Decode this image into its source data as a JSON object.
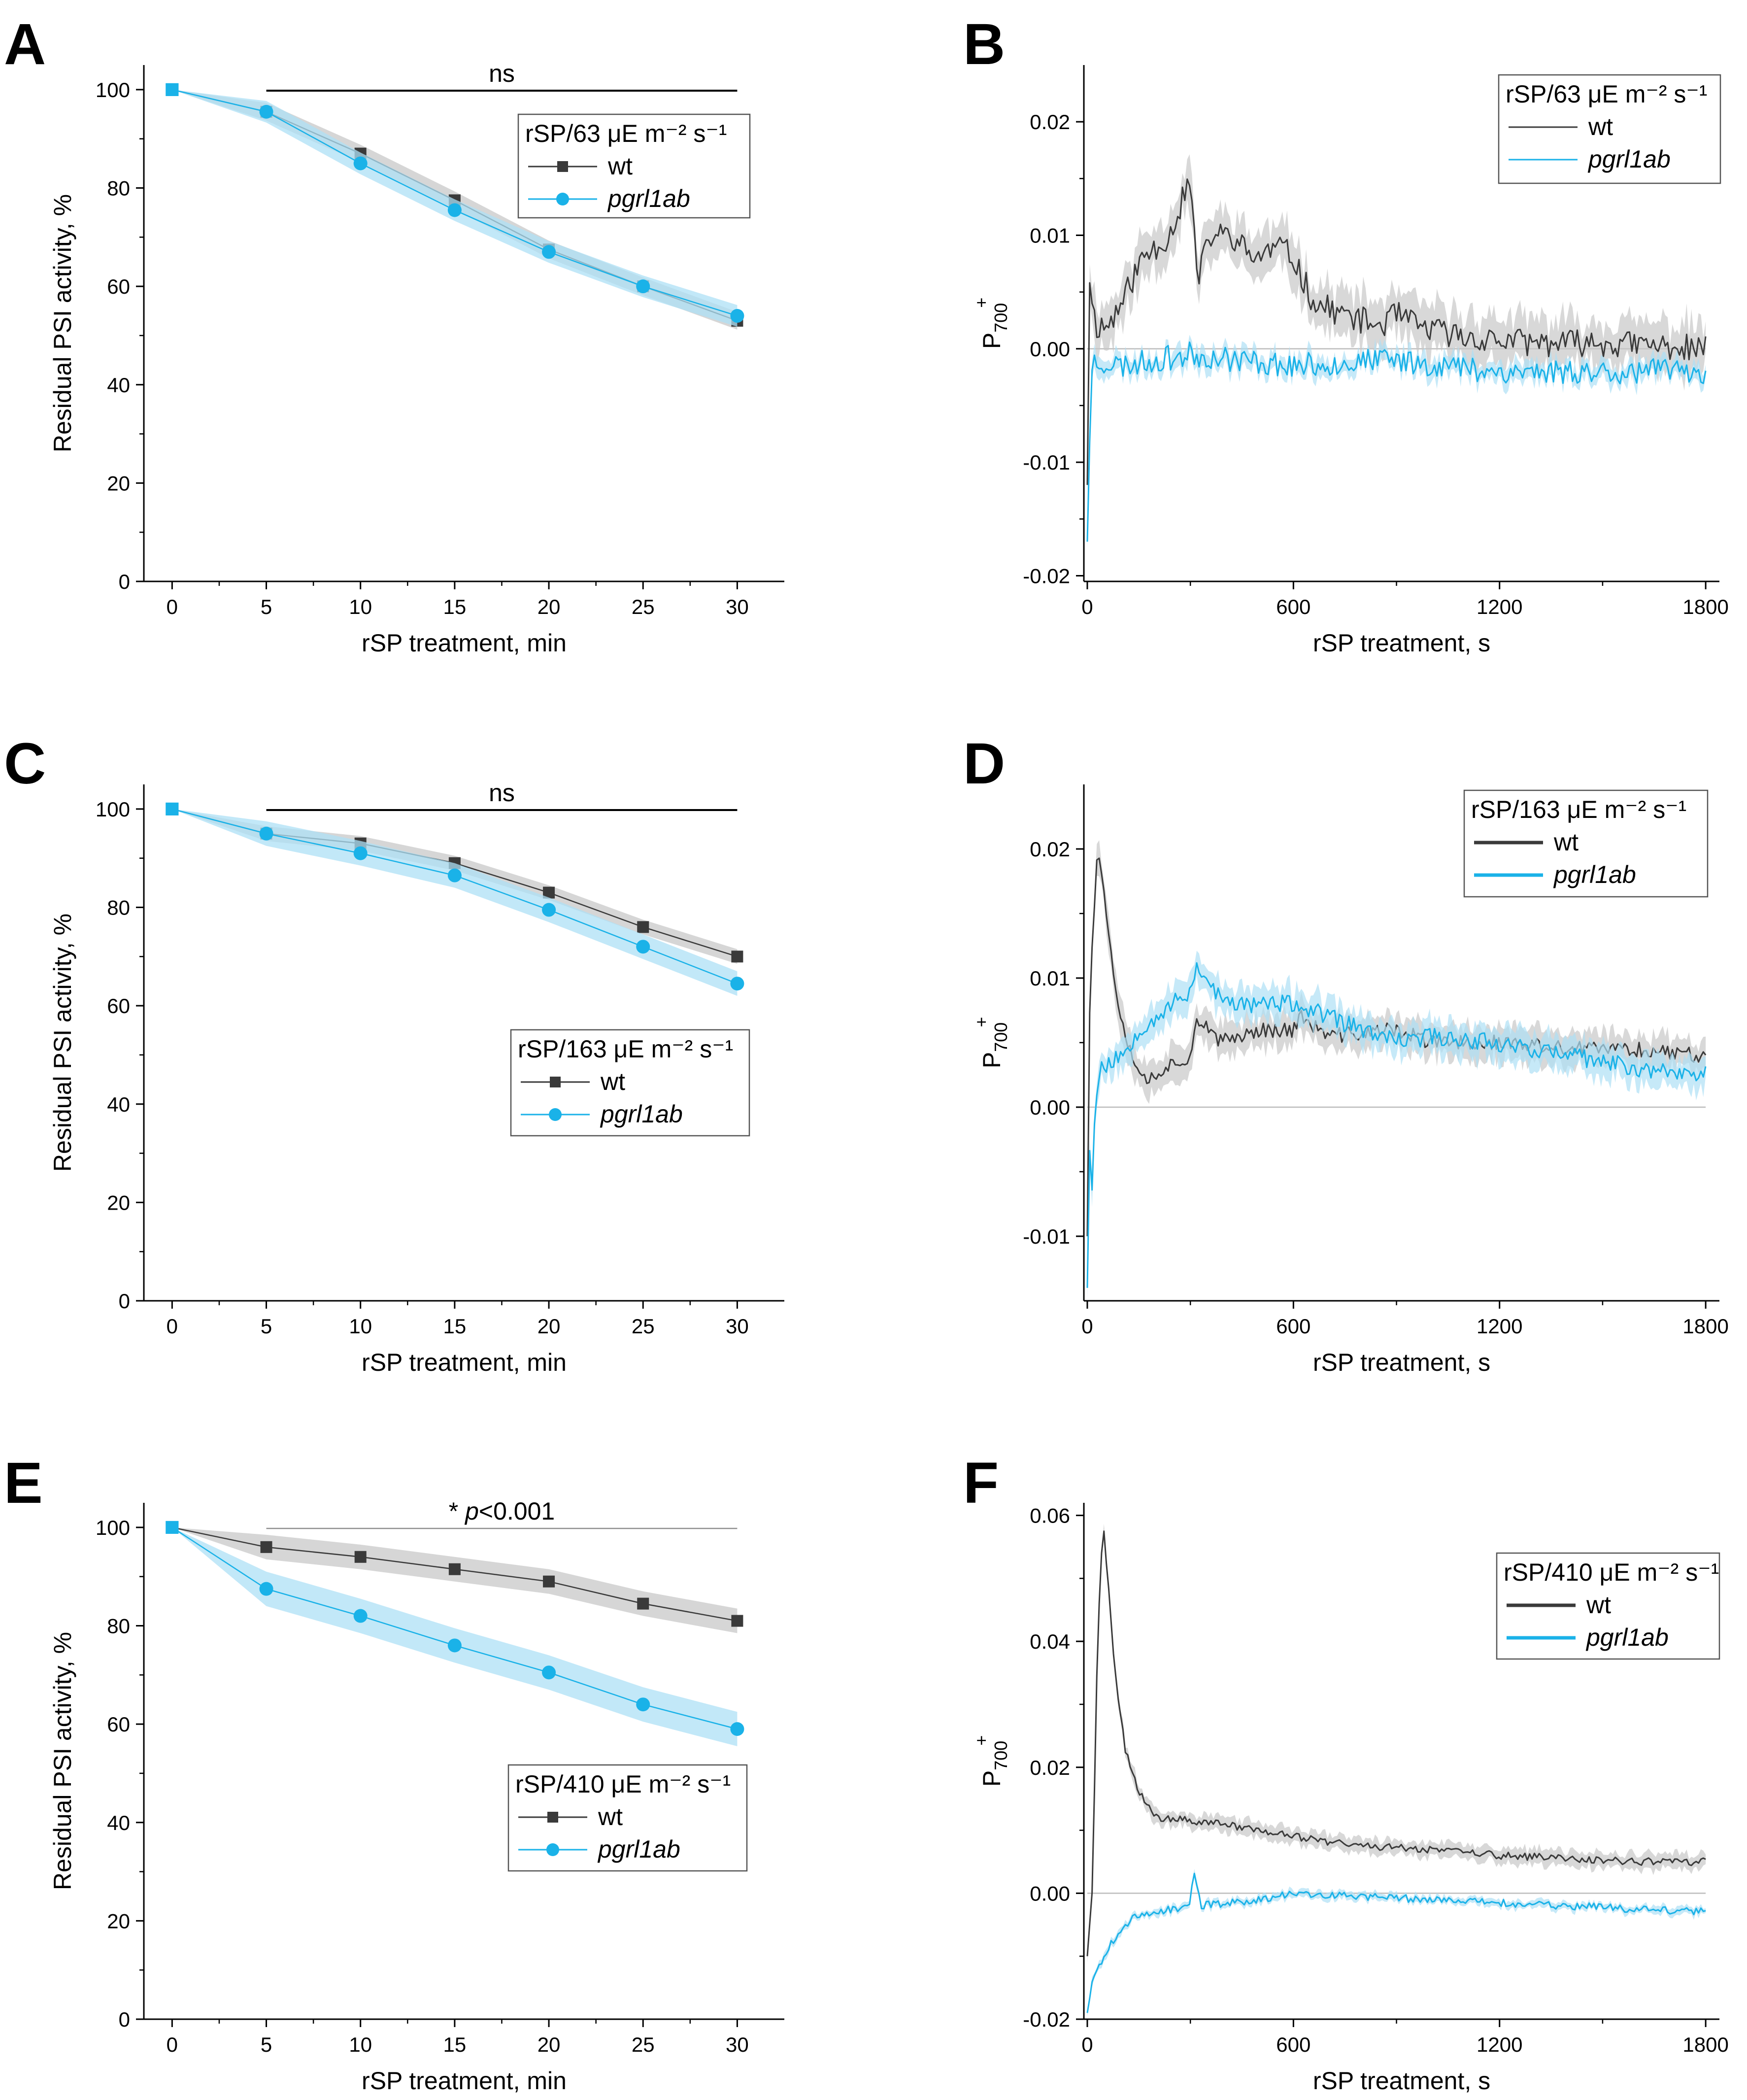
{
  "figure": {
    "colors": {
      "wt": "#3a3a3a",
      "mutant": "#1ab2e8",
      "wt_band": "#c8c8c8",
      "mutant_band": "#aee0f5",
      "axis": "#000000",
      "zero_line": "#bdbdbd"
    }
  },
  "chart_data": [
    {
      "panel": "A",
      "type": "line",
      "xlabel": "rSP treatment, min",
      "ylabel": "Residual PSI activity, %",
      "x": [
        0,
        5,
        10,
        15,
        20,
        25,
        30
      ],
      "xlim": [
        -1.5,
        32.5
      ],
      "ylim": [
        0,
        105
      ],
      "xticks": [
        "0",
        "5",
        "10",
        "15",
        "20",
        "25",
        "30"
      ],
      "yticks": [
        "0",
        "20",
        "40",
        "60",
        "80",
        "100"
      ],
      "legend": {
        "title": "rSP/63 μE m⁻² s⁻¹",
        "position": "top-right"
      },
      "significance": {
        "text": "ns",
        "x_start": 5,
        "x_end": 30
      },
      "series": [
        {
          "name": "wt",
          "values": [
            100,
            95.5,
            87,
            77.5,
            67.5,
            60,
            53
          ],
          "band": 1.8,
          "marker": "square"
        },
        {
          "name": "pgrl1ab",
          "values": [
            100,
            95.5,
            85,
            75.5,
            67,
            60,
            54
          ],
          "band": 2.2,
          "marker": "circle"
        }
      ]
    },
    {
      "panel": "B",
      "type": "line",
      "xlabel": "rSP treatment, s",
      "ylabel_main": "P",
      "ylabel_sub": "700",
      "ylabel_sup": "+",
      "xlim": [
        -10,
        1840
      ],
      "ylim": [
        -0.0205,
        0.025
      ],
      "xticks": [
        "0",
        "600",
        "1200",
        "1800"
      ],
      "yticks": [
        "-0.02",
        "-0.01",
        "0.00",
        "0.01",
        "0.02"
      ],
      "legend": {
        "title": "rSP/63 μE m⁻² s⁻¹",
        "position": "top-right"
      },
      "series": [
        {
          "name": "wt",
          "profile": [
            [
              0,
              -0.012
            ],
            [
              6,
              0.006
            ],
            [
              25,
              0.002
            ],
            [
              60,
              0.002
            ],
            [
              100,
              0.004
            ],
            [
              160,
              0.008
            ],
            [
              240,
              0.01
            ],
            [
              300,
              0.015
            ],
            [
              320,
              0.006
            ],
            [
              360,
              0.01
            ],
            [
              420,
              0.01
            ],
            [
              480,
              0.008
            ],
            [
              560,
              0.009
            ],
            [
              600,
              0.008
            ],
            [
              660,
              0.004
            ],
            [
              750,
              0.003
            ],
            [
              850,
              0.002
            ],
            [
              900,
              0.003
            ],
            [
              960,
              0.002
            ],
            [
              1100,
              0.001
            ],
            [
              1300,
              0.0005
            ],
            [
              1500,
              0.0005
            ],
            [
              1800,
              0.0
            ]
          ],
          "noise": 0.0012,
          "band": 0.002,
          "seed": 11
        },
        {
          "name": "pgrl1ab",
          "profile": [
            [
              0,
              -0.017
            ],
            [
              6,
              -0.009
            ],
            [
              15,
              -0.001
            ],
            [
              100,
              -0.0015
            ],
            [
              300,
              -0.0005
            ],
            [
              600,
              -0.0015
            ],
            [
              900,
              -0.001
            ],
            [
              1200,
              -0.002
            ],
            [
              1500,
              -0.002
            ],
            [
              1800,
              -0.002
            ]
          ],
          "noise": 0.0011,
          "band": 0.0008,
          "seed": 23
        }
      ]
    },
    {
      "panel": "C",
      "type": "line",
      "xlabel": "rSP treatment, min",
      "ylabel": "Residual PSI activity, %",
      "x": [
        0,
        5,
        10,
        15,
        20,
        25,
        30
      ],
      "xlim": [
        -1.5,
        32.5
      ],
      "ylim": [
        0,
        105
      ],
      "xticks": [
        "0",
        "5",
        "10",
        "15",
        "20",
        "25",
        "30"
      ],
      "yticks": [
        "0",
        "20",
        "40",
        "60",
        "80",
        "100"
      ],
      "legend": {
        "title": "rSP/163 μE m⁻² s⁻¹",
        "position": "center-right"
      },
      "significance": {
        "text": "ns",
        "x_start": 5,
        "x_end": 30
      },
      "series": [
        {
          "name": "wt",
          "values": [
            100,
            95,
            93,
            89,
            83,
            76,
            70
          ],
          "band": 1.5,
          "marker": "square"
        },
        {
          "name": "pgrl1ab",
          "values": [
            100,
            95,
            91,
            86.5,
            79.5,
            72,
            64.5
          ],
          "band": 2.5,
          "marker": "circle"
        }
      ]
    },
    {
      "panel": "D",
      "type": "line",
      "xlabel": "rSP treatment, s",
      "ylabel_main": "P",
      "ylabel_sub": "700",
      "ylabel_sup": "+",
      "xlim": [
        -10,
        1840
      ],
      "ylim": [
        -0.015,
        0.025
      ],
      "xticks": [
        "0",
        "600",
        "1200",
        "1800"
      ],
      "yticks": [
        "-0.01",
        "0.00",
        "0.01",
        "0.02"
      ],
      "legend": {
        "title": "rSP/163 μE m⁻² s⁻¹",
        "position": "top-right"
      },
      "series": [
        {
          "name": "wt",
          "profile": [
            [
              0,
              -0.01
            ],
            [
              8,
              0.01
            ],
            [
              30,
              0.0205
            ],
            [
              55,
              0.015
            ],
            [
              90,
              0.008
            ],
            [
              130,
              0.004
            ],
            [
              170,
              0.002
            ],
            [
              220,
              0.003
            ],
            [
              300,
              0.004
            ],
            [
              320,
              0.007
            ],
            [
              380,
              0.005
            ],
            [
              500,
              0.006
            ],
            [
              600,
              0.006
            ],
            [
              620,
              0.007
            ],
            [
              700,
              0.0055
            ],
            [
              900,
              0.006
            ],
            [
              1000,
              0.005
            ],
            [
              1200,
              0.005
            ],
            [
              1400,
              0.0045
            ],
            [
              1600,
              0.0045
            ],
            [
              1800,
              0.004
            ]
          ],
          "noise": 0.0006,
          "band": 0.0012,
          "seed": 37
        },
        {
          "name": "pgrl1ab",
          "profile": [
            [
              0,
              -0.014
            ],
            [
              5,
              -0.002
            ],
            [
              12,
              -0.007
            ],
            [
              25,
              0.001
            ],
            [
              40,
              0.003
            ],
            [
              100,
              0.004
            ],
            [
              150,
              0.006
            ],
            [
              250,
              0.008
            ],
            [
              300,
              0.009
            ],
            [
              320,
              0.011
            ],
            [
              400,
              0.008
            ],
            [
              600,
              0.008
            ],
            [
              700,
              0.007
            ],
            [
              900,
              0.005
            ],
            [
              1000,
              0.0055
            ],
            [
              1200,
              0.005
            ],
            [
              1400,
              0.004
            ],
            [
              1600,
              0.003
            ],
            [
              1800,
              0.0025
            ]
          ],
          "noise": 0.0007,
          "band": 0.0012,
          "seed": 53
        }
      ]
    },
    {
      "panel": "E",
      "type": "line",
      "xlabel": "rSP treatment, min",
      "ylabel": "Residual PSI activity, %",
      "x": [
        0,
        5,
        10,
        15,
        20,
        25,
        30
      ],
      "xlim": [
        -1.5,
        32.5
      ],
      "ylim": [
        0,
        105
      ],
      "xticks": [
        "0",
        "5",
        "10",
        "15",
        "20",
        "25",
        "30"
      ],
      "yticks": [
        "0",
        "20",
        "40",
        "60",
        "80",
        "100"
      ],
      "legend": {
        "title": "rSP/410 μE m⁻² s⁻¹",
        "position": "bottom-right"
      },
      "significance": {
        "prefix": "* ",
        "italic": "p",
        "suffix": "<0.001",
        "x_start": 5,
        "x_end": 30
      },
      "series": [
        {
          "name": "wt",
          "values": [
            100,
            96,
            94,
            91.5,
            89,
            84.5,
            81
          ],
          "band": 2.5,
          "marker": "square"
        },
        {
          "name": "pgrl1ab",
          "values": [
            100,
            87.5,
            82,
            76,
            70.5,
            64,
            59
          ],
          "band": 3.5,
          "marker": "circle"
        }
      ]
    },
    {
      "panel": "F",
      "type": "line",
      "xlabel": "rSP treatment, s",
      "ylabel_main": "P",
      "ylabel_sub": "700",
      "ylabel_sup": "+",
      "xlim": [
        -10,
        1840
      ],
      "ylim": [
        -0.02,
        0.062
      ],
      "xticks": [
        "0",
        "600",
        "1200",
        "1800"
      ],
      "yticks": [
        "-0.02",
        "0.00",
        "0.02",
        "0.04",
        "0.06"
      ],
      "legend": {
        "title": "rSP/410 μE m⁻² s⁻¹",
        "position": "top-right"
      },
      "series": [
        {
          "name": "wt",
          "profile": [
            [
              0,
              -0.01
            ],
            [
              15,
              0.001
            ],
            [
              30,
              0.04
            ],
            [
              45,
              0.059
            ],
            [
              60,
              0.05
            ],
            [
              80,
              0.035
            ],
            [
              110,
              0.023
            ],
            [
              150,
              0.016
            ],
            [
              200,
              0.012
            ],
            [
              300,
              0.0115
            ],
            [
              400,
              0.011
            ],
            [
              600,
              0.009
            ],
            [
              800,
              0.0075
            ],
            [
              1000,
              0.007
            ],
            [
              1200,
              0.006
            ],
            [
              1400,
              0.0055
            ],
            [
              1600,
              0.005
            ],
            [
              1800,
              0.005
            ]
          ],
          "noise": 0.0006,
          "band": 0.0012,
          "seed": 71
        },
        {
          "name": "pgrl1ab",
          "profile": [
            [
              0,
              -0.019
            ],
            [
              15,
              -0.014
            ],
            [
              40,
              -0.011
            ],
            [
              80,
              -0.007
            ],
            [
              130,
              -0.004
            ],
            [
              200,
              -0.003
            ],
            [
              300,
              -0.002
            ],
            [
              310,
              0.004
            ],
            [
              330,
              -0.002
            ],
            [
              500,
              -0.001
            ],
            [
              600,
              0.0
            ],
            [
              800,
              -0.0005
            ],
            [
              1000,
              -0.001
            ],
            [
              1200,
              -0.0015
            ],
            [
              1400,
              -0.002
            ],
            [
              1600,
              -0.0025
            ],
            [
              1800,
              -0.003
            ]
          ],
          "noise": 0.0006,
          "band": 0.0006,
          "seed": 89
        }
      ]
    }
  ]
}
